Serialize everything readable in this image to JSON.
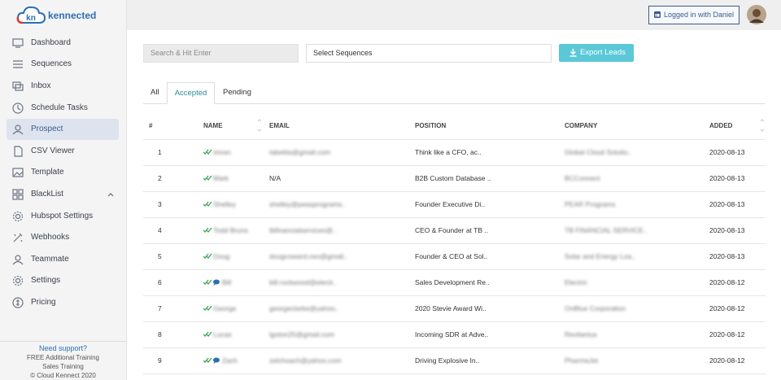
{
  "header": {
    "logo_mark": "kn",
    "logo": "kennected",
    "user_button": "Logged in with Daniel"
  },
  "sidebar": {
    "nav": [
      "Dashboard",
      "Sequences",
      "Inbox",
      "Schedule Tasks",
      "Prospect",
      "CSV Viewer",
      "Template",
      "BlackList",
      "Hubspot Settings",
      "Webhooks",
      "Teammate",
      "Settings",
      "Pricing"
    ],
    "footer": {
      "support": "Need support?",
      "training": "FREE Additional Training",
      "sales": "Sales Training",
      "copyright": "© Cloud Kennect 2020"
    }
  },
  "toolbar": {
    "search_placeholder": "Search & Hit Enter",
    "select": "Select Sequences",
    "export": "Export Leads"
  },
  "tabs": [
    "All",
    "Accepted",
    "Pending"
  ],
  "table": {
    "columns": [
      "#",
      "NAME",
      "EMAIL",
      "POSITION",
      "COMPANY",
      "ADDED"
    ],
    "rows": [
      [
        "1",
        "Imran",
        "tabettia@gmail.com",
        "Think like a CFO, ac..",
        "Global Cloud Solutio..",
        "2020-08-13"
      ],
      [
        "2",
        "Mark",
        "N/A",
        "B2B Custom Database ..",
        "BCConnect",
        "2020-08-13"
      ],
      [
        "3",
        "Shelley",
        "shelley@peasprograms..",
        "Founder Executive Di..",
        "PEAR Programs",
        "2020-08-13"
      ],
      [
        "4",
        "Todd Bruns",
        "tbfinancialservices@..",
        "CEO & Founder at TB ..",
        "TB FINANCIAL SERVICE..",
        "2020-08-13"
      ],
      [
        "5",
        "Doug",
        "dougcoward.ceo@gmail..",
        "Founder & CEO at Sol..",
        "Solar and Energy Loa..",
        "2020-08-13"
      ],
      [
        "6",
        "Bill",
        "bill.rockwood@electr..",
        "Sales Development Re..",
        "Electric",
        "2020-08-12"
      ],
      [
        "7",
        "George",
        "georgeclarke@yahoo..",
        "2020 Stevie Award Wi..",
        "OnBlue Corporation",
        "2020-08-12"
      ],
      [
        "8",
        "Lucas",
        "lgoton25@gmail.com",
        "Incoming SDR at Adve..",
        "Revitanius",
        "2020-08-12"
      ],
      [
        "9",
        "Zach",
        "zelchoach@yahoo.com",
        "Driving Explosive In..",
        "PharmaJet",
        "2020-08-12"
      ]
    ]
  }
}
